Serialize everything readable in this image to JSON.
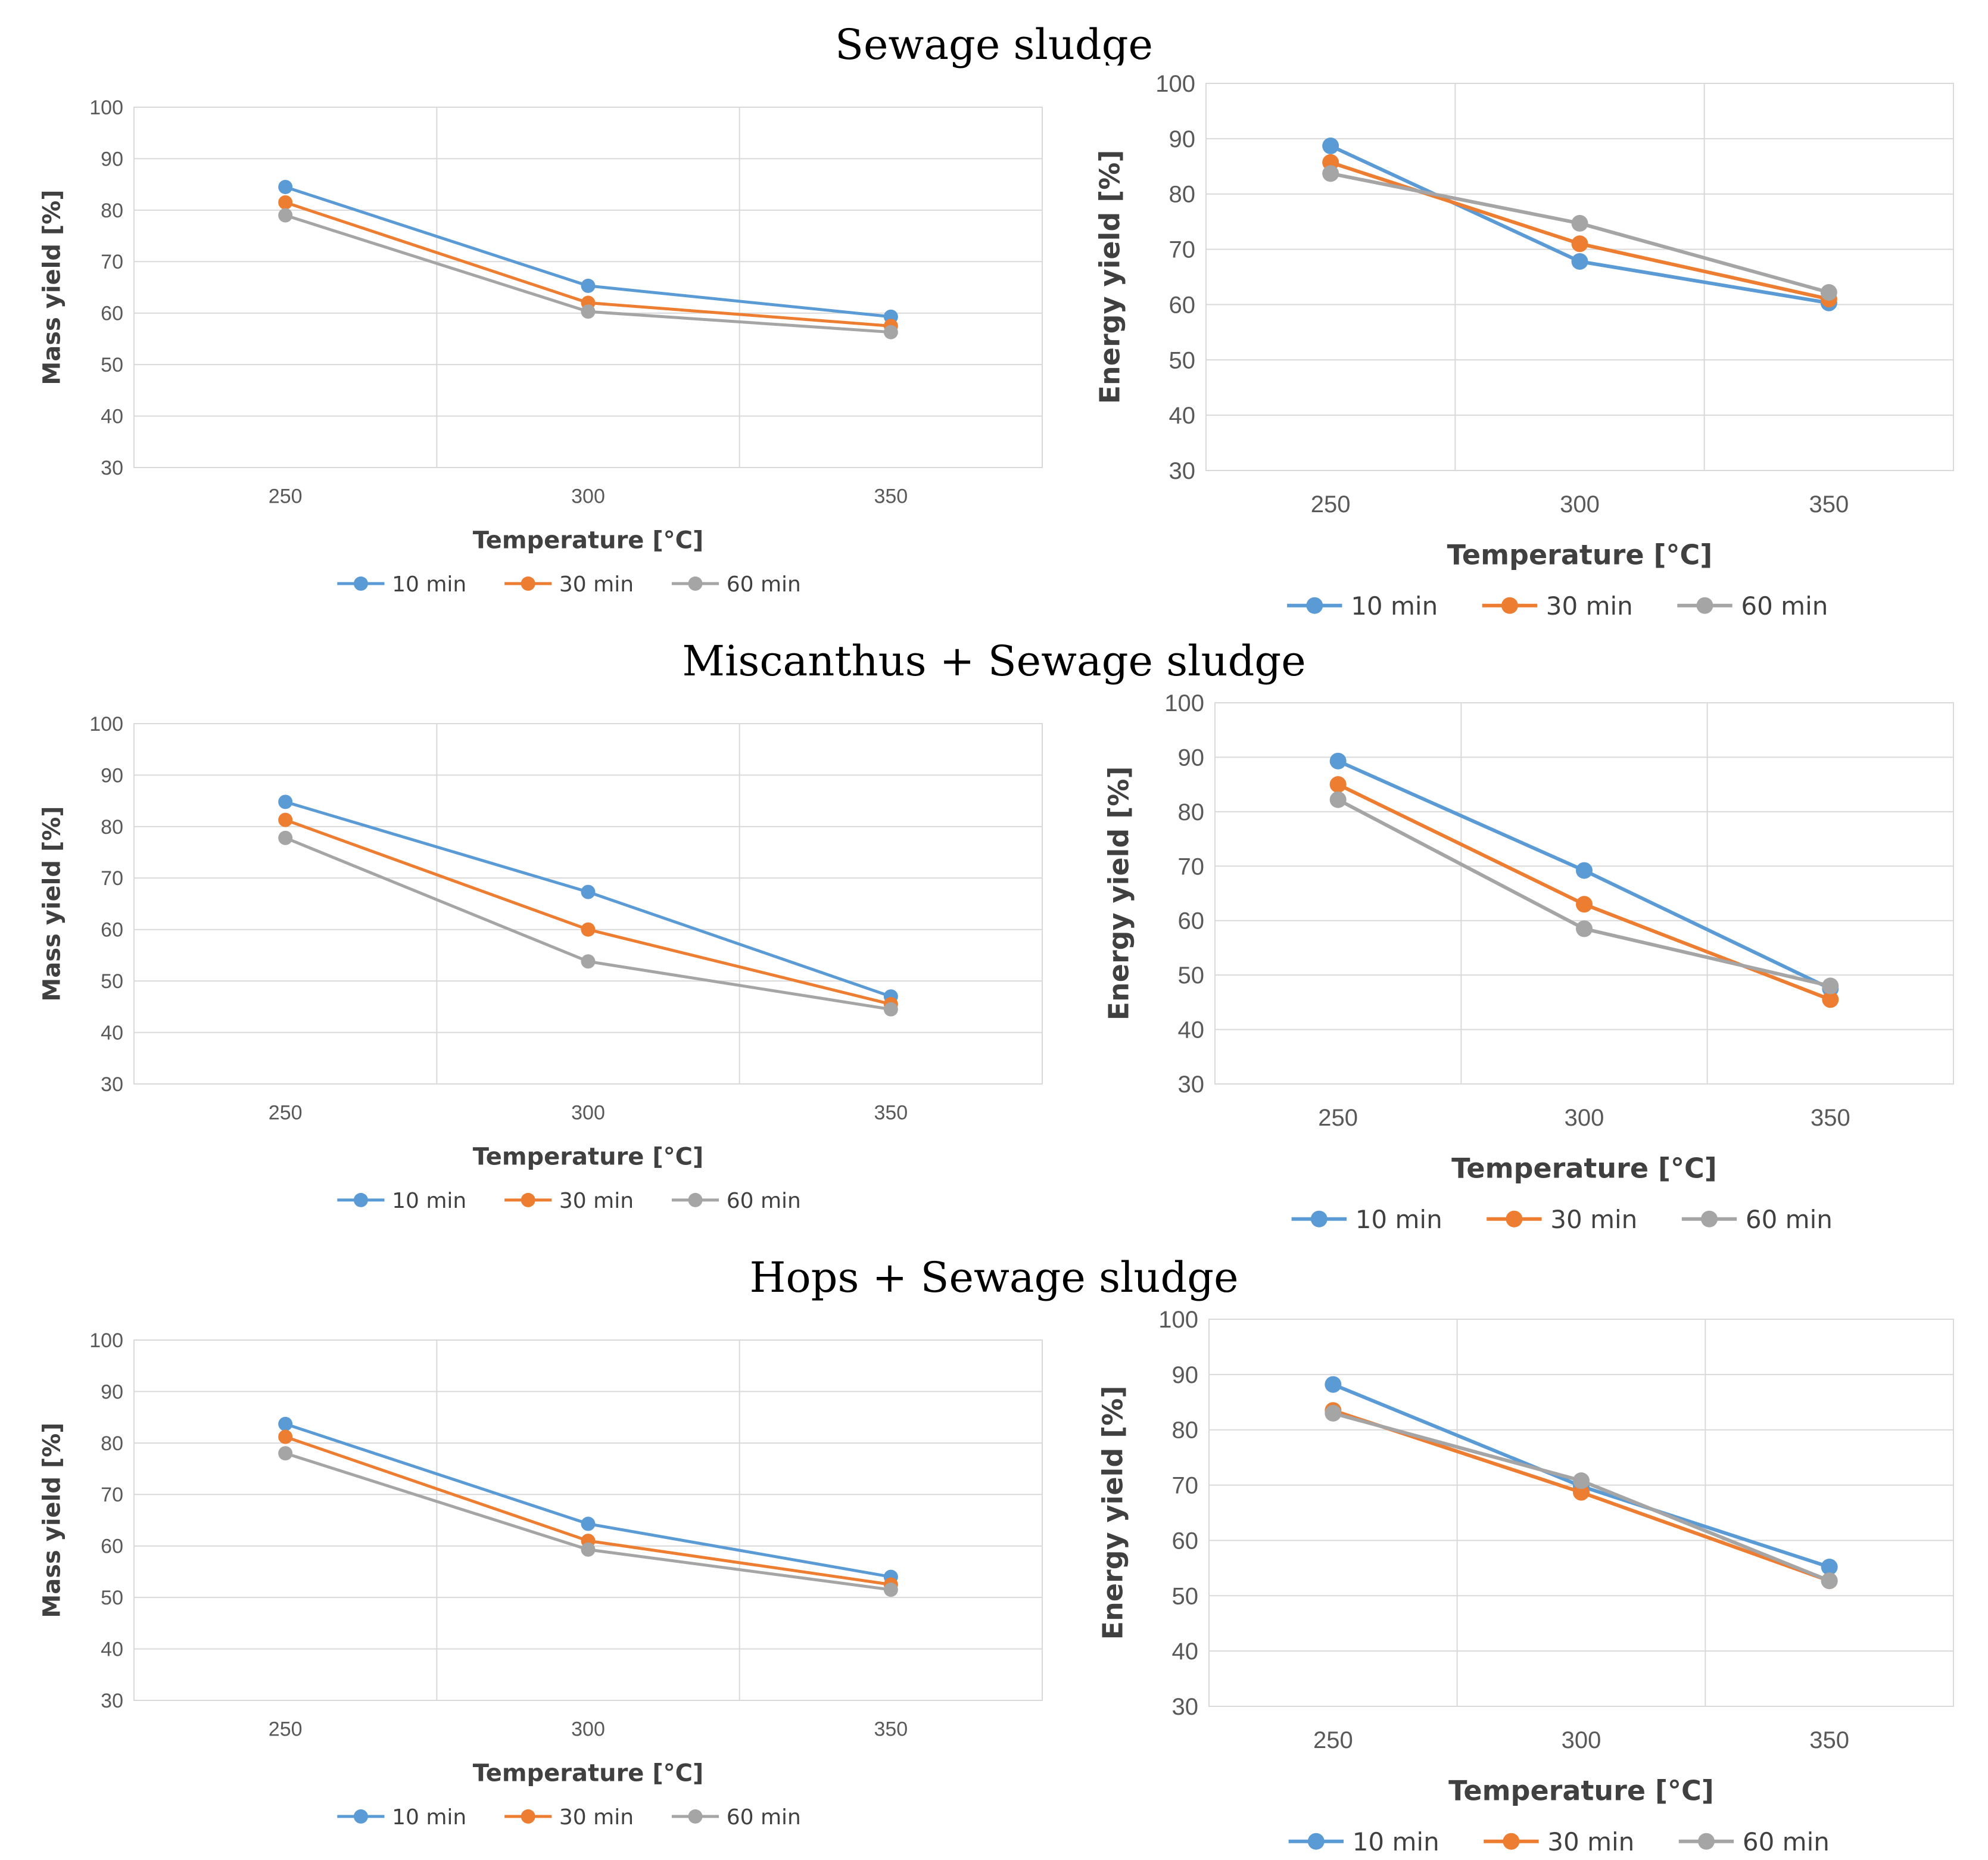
{
  "sections": [
    {
      "title": "Sewage sludge"
    },
    {
      "title": "Miscanthus + Sewage sludge"
    },
    {
      "title": "Hops + Sewage sludge"
    }
  ],
  "chart_data": [
    {
      "type": "line",
      "title": "Sewage sludge",
      "categories": [
        "250",
        "300",
        "350"
      ],
      "xlabel": "Temperature [°C]",
      "ylabel": "Mass yield [%]",
      "ylim": [
        30,
        100
      ],
      "yticks": [
        "30",
        "40",
        "50",
        "60",
        "70",
        "80",
        "90",
        "100"
      ],
      "grid": true,
      "legend_position": "bottom",
      "series": [
        {
          "name": "10 min",
          "color": "#5B9BD5",
          "values": [
            84.5,
            65.3,
            59.3
          ]
        },
        {
          "name": "30 min",
          "color": "#ED7D31",
          "values": [
            81.5,
            62.0,
            57.5
          ]
        },
        {
          "name": "60 min",
          "color": "#A5A5A5",
          "values": [
            79.0,
            60.3,
            56.3
          ]
        }
      ]
    },
    {
      "type": "line",
      "title": "Sewage sludge",
      "categories": [
        "250",
        "300",
        "350"
      ],
      "xlabel": "Temperature [°C]",
      "ylabel": "Energy yield [%]",
      "ylim": [
        30,
        100
      ],
      "yticks": [
        "30",
        "40",
        "50",
        "60",
        "70",
        "80",
        "90",
        "100"
      ],
      "grid": true,
      "legend_position": "bottom",
      "series": [
        {
          "name": "10 min",
          "color": "#5B9BD5",
          "values": [
            88.7,
            67.8,
            60.3
          ]
        },
        {
          "name": "30 min",
          "color": "#ED7D31",
          "values": [
            85.7,
            71.0,
            61.0
          ]
        },
        {
          "name": "60 min",
          "color": "#A5A5A5",
          "values": [
            83.7,
            74.7,
            62.2
          ]
        }
      ]
    },
    {
      "type": "line",
      "title": "Miscanthus + Sewage sludge",
      "categories": [
        "250",
        "300",
        "350"
      ],
      "xlabel": "Temperature [°C]",
      "ylabel": "Mass yield [%]",
      "ylim": [
        30,
        100
      ],
      "yticks": [
        "30",
        "40",
        "50",
        "60",
        "70",
        "80",
        "90",
        "100"
      ],
      "grid": true,
      "legend_position": "bottom",
      "series": [
        {
          "name": "10 min",
          "color": "#5B9BD5",
          "values": [
            84.8,
            67.3,
            47.0
          ]
        },
        {
          "name": "30 min",
          "color": "#ED7D31",
          "values": [
            81.3,
            60.0,
            45.5
          ]
        },
        {
          "name": "60 min",
          "color": "#A5A5A5",
          "values": [
            77.8,
            53.8,
            44.5
          ]
        }
      ]
    },
    {
      "type": "line",
      "title": "Miscanthus + Sewage sludge",
      "categories": [
        "250",
        "300",
        "350"
      ],
      "xlabel": "Temperature [°C]",
      "ylabel": "Energy yield [%]",
      "ylim": [
        30,
        100
      ],
      "yticks": [
        "30",
        "40",
        "50",
        "60",
        "70",
        "80",
        "90",
        "100"
      ],
      "grid": true,
      "legend_position": "bottom",
      "series": [
        {
          "name": "10 min",
          "color": "#5B9BD5",
          "values": [
            89.3,
            69.2,
            47.5
          ]
        },
        {
          "name": "30 min",
          "color": "#ED7D31",
          "values": [
            85.0,
            63.0,
            45.5
          ]
        },
        {
          "name": "60 min",
          "color": "#A5A5A5",
          "values": [
            82.2,
            58.5,
            48.0
          ]
        }
      ]
    },
    {
      "type": "line",
      "title": "Hops + Sewage sludge",
      "categories": [
        "250",
        "300",
        "350"
      ],
      "xlabel": "Temperature [°C]",
      "ylabel": "Mass yield [%]",
      "ylim": [
        30,
        100
      ],
      "yticks": [
        "30",
        "40",
        "50",
        "60",
        "70",
        "80",
        "90",
        "100"
      ],
      "grid": true,
      "legend_position": "bottom",
      "series": [
        {
          "name": "10 min",
          "color": "#5B9BD5",
          "values": [
            83.7,
            64.3,
            54.0
          ]
        },
        {
          "name": "30 min",
          "color": "#ED7D31",
          "values": [
            81.2,
            61.0,
            52.5
          ]
        },
        {
          "name": "60 min",
          "color": "#A5A5A5",
          "values": [
            78.0,
            59.3,
            51.5
          ]
        }
      ]
    },
    {
      "type": "line",
      "title": "Hops + Sewage sludge",
      "categories": [
        "250",
        "300",
        "350"
      ],
      "xlabel": "Temperature [°C]",
      "ylabel": "Energy yield [%]",
      "ylim": [
        30,
        100
      ],
      "yticks": [
        "30",
        "40",
        "50",
        "60",
        "70",
        "80",
        "90",
        "100"
      ],
      "grid": true,
      "legend_position": "bottom",
      "series": [
        {
          "name": "10 min",
          "color": "#5B9BD5",
          "values": [
            88.2,
            69.8,
            55.2
          ]
        },
        {
          "name": "30 min",
          "color": "#ED7D31",
          "values": [
            83.5,
            68.7,
            52.7
          ]
        },
        {
          "name": "60 min",
          "color": "#A5A5A5",
          "values": [
            83.0,
            70.8,
            52.7
          ]
        }
      ]
    }
  ]
}
